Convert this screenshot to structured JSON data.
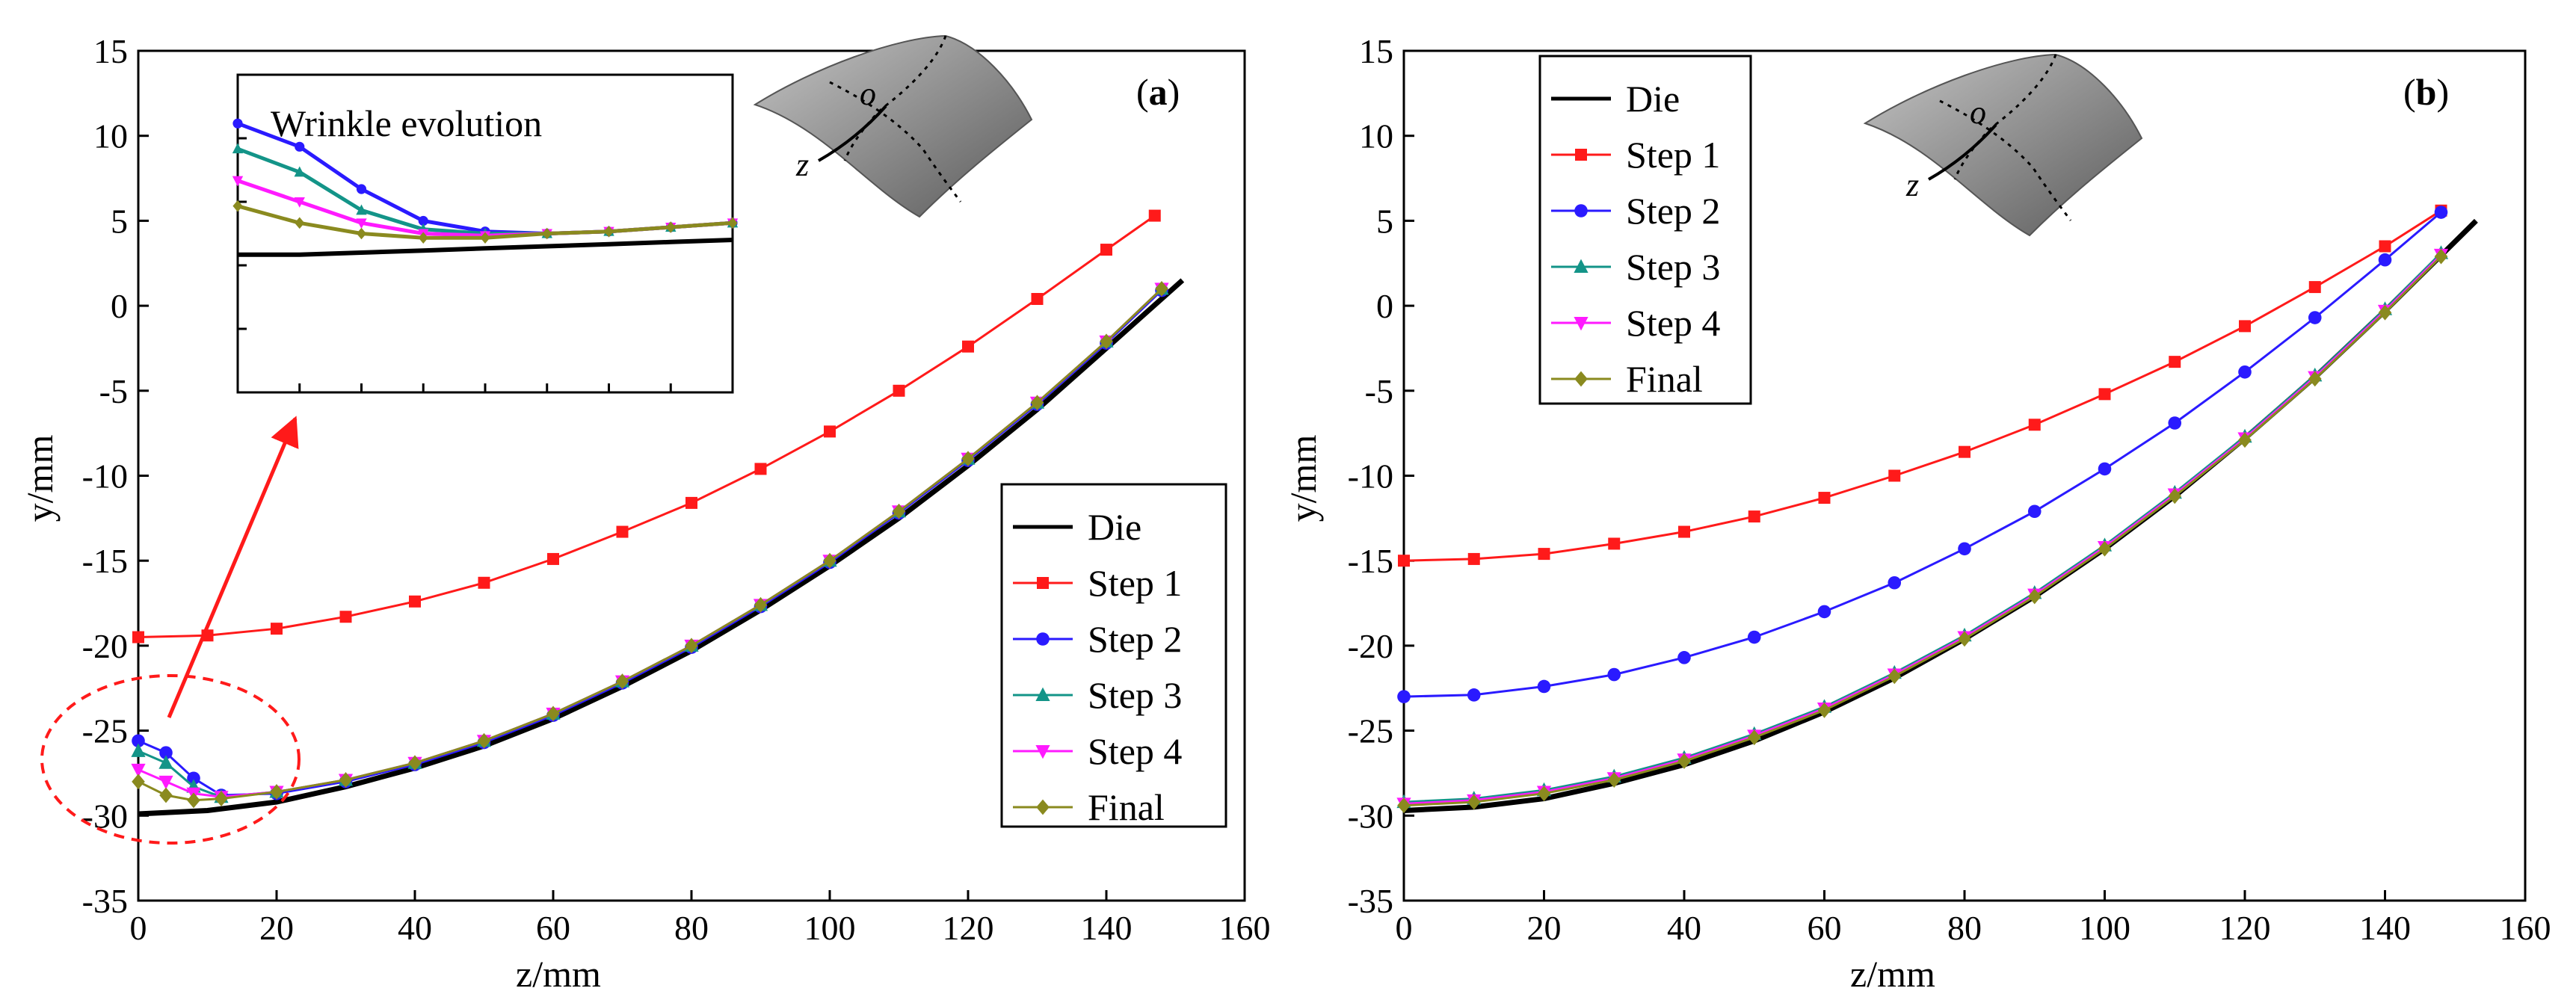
{
  "colors": {
    "die": "#000000",
    "step1": "#ff1a1a",
    "step2": "#2a1aff",
    "step3": "#139488",
    "step4": "#ff1aff",
    "final": "#8a8a1f",
    "annotation": "#ff1a1a"
  },
  "chart_data": [
    {
      "type": "line",
      "panel_label_prefix": "(",
      "panel_label_letter": "a",
      "panel_label_suffix": ")",
      "xlabel": "z/mm",
      "ylabel": "y/mm",
      "xlim": [
        0,
        160
      ],
      "ylim": [
        -35,
        15
      ],
      "xticks": [
        0,
        20,
        40,
        60,
        80,
        100,
        120,
        140,
        160
      ],
      "yticks": [
        -35,
        -30,
        -25,
        -20,
        -15,
        -10,
        -5,
        0,
        5,
        10,
        15
      ],
      "legend_position": "bottom-right",
      "series": [
        {
          "name": "Die",
          "marker": "none",
          "x": [
            0,
            10,
            20,
            30,
            40,
            50,
            60,
            70,
            80,
            90,
            100,
            110,
            120,
            130,
            140,
            151
          ],
          "y": [
            -29.9,
            -29.7,
            -29.2,
            -28.3,
            -27.2,
            -25.9,
            -24.3,
            -22.4,
            -20.3,
            -17.9,
            -15.3,
            -12.5,
            -9.4,
            -6.1,
            -2.5,
            1.5
          ]
        },
        {
          "name": "Step 1",
          "marker": "square",
          "x": [
            0,
            10,
            20,
            30,
            40,
            50,
            60,
            70,
            80,
            90,
            100,
            110,
            120,
            130,
            140,
            147
          ],
          "y": [
            -19.5,
            -19.4,
            -19.0,
            -18.3,
            -17.4,
            -16.3,
            -14.9,
            -13.3,
            -11.6,
            -9.6,
            -7.4,
            -5.0,
            -2.4,
            0.4,
            3.3,
            5.3
          ]
        },
        {
          "name": "Step 2",
          "marker": "circle",
          "x": [
            0,
            4,
            8,
            12,
            20,
            30,
            40,
            50,
            60,
            70,
            80,
            90,
            100,
            110,
            120,
            130,
            140,
            148
          ],
          "y": [
            -25.6,
            -26.3,
            -27.8,
            -28.8,
            -28.7,
            -28.0,
            -27.0,
            -25.7,
            -24.1,
            -22.2,
            -20.1,
            -17.7,
            -15.1,
            -12.2,
            -9.1,
            -5.8,
            -2.2,
            0.9
          ]
        },
        {
          "name": "Step 3",
          "marker": "triangle",
          "x": [
            0,
            4,
            8,
            12,
            20,
            30,
            40,
            50,
            60,
            70,
            80,
            90,
            100,
            110,
            120,
            130,
            140,
            148
          ],
          "y": [
            -26.2,
            -26.9,
            -28.3,
            -28.9,
            -28.6,
            -27.9,
            -26.9,
            -25.6,
            -24.0,
            -22.1,
            -20.0,
            -17.6,
            -15.0,
            -12.1,
            -9.0,
            -5.7,
            -2.1,
            1.0
          ]
        },
        {
          "name": "Step 4",
          "marker": "triangle-down",
          "x": [
            0,
            4,
            8,
            12,
            20,
            30,
            40,
            50,
            60,
            70,
            80,
            90,
            100,
            110,
            120,
            130,
            140,
            148
          ],
          "y": [
            -27.3,
            -28.0,
            -28.7,
            -28.9,
            -28.6,
            -27.9,
            -26.9,
            -25.6,
            -24.0,
            -22.1,
            -20.0,
            -17.6,
            -15.0,
            -12.1,
            -9.0,
            -5.7,
            -2.1,
            1.0
          ]
        },
        {
          "name": "Final",
          "marker": "diamond",
          "x": [
            0,
            4,
            8,
            12,
            20,
            30,
            40,
            50,
            60,
            70,
            80,
            90,
            100,
            110,
            120,
            130,
            140,
            148
          ],
          "y": [
            -28.0,
            -28.8,
            -29.1,
            -29.0,
            -28.6,
            -27.9,
            -26.9,
            -25.6,
            -24.0,
            -22.1,
            -20.0,
            -17.6,
            -15.0,
            -12.1,
            -9.0,
            -5.7,
            -2.1,
            1.0
          ]
        }
      ],
      "inset": {
        "title": "Wrinkle evolution",
        "curves": [
          {
            "series": "Die",
            "y": [
              0.5,
              0.5,
              0.6,
              0.7,
              0.8,
              0.9,
              1.0,
              1.1,
              1.2
            ]
          },
          {
            "series": "Step 2",
            "y": [
              6.7,
              5.6,
              3.6,
              2.1,
              1.6,
              1.5,
              1.6,
              1.8,
              2.0
            ]
          },
          {
            "series": "Step 3",
            "y": [
              5.5,
              4.4,
              2.6,
              1.7,
              1.5,
              1.5,
              1.6,
              1.8,
              2.0
            ]
          },
          {
            "series": "Step 4",
            "y": [
              4.0,
              3.0,
              2.0,
              1.5,
              1.4,
              1.5,
              1.6,
              1.8,
              2.0
            ]
          },
          {
            "series": "Final",
            "y": [
              2.8,
              2.0,
              1.5,
              1.3,
              1.3,
              1.5,
              1.6,
              1.8,
              2.0
            ]
          }
        ]
      },
      "diagram_labels": {
        "origin": "o",
        "axis": "z"
      }
    },
    {
      "type": "line",
      "panel_label_prefix": "(",
      "panel_label_letter": "b",
      "panel_label_suffix": ")",
      "xlabel": "z/mm",
      "ylabel": "y/mm",
      "xlim": [
        0,
        160
      ],
      "ylim": [
        -35,
        15
      ],
      "xticks": [
        0,
        20,
        40,
        60,
        80,
        100,
        120,
        140,
        160
      ],
      "yticks": [
        -35,
        -30,
        -25,
        -20,
        -15,
        -10,
        -5,
        0,
        5,
        10,
        15
      ],
      "legend_position": "top-left",
      "series": [
        {
          "name": "Die",
          "marker": "none",
          "x": [
            0,
            10,
            20,
            30,
            40,
            50,
            60,
            70,
            80,
            90,
            100,
            110,
            120,
            130,
            140,
            153
          ],
          "y": [
            -29.7,
            -29.5,
            -29.0,
            -28.1,
            -27.0,
            -25.6,
            -23.9,
            -21.9,
            -19.6,
            -17.1,
            -14.3,
            -11.2,
            -7.8,
            -4.2,
            -0.3,
            5.0
          ]
        },
        {
          "name": "Step 1",
          "marker": "square",
          "x": [
            0,
            10,
            20,
            30,
            40,
            50,
            60,
            70,
            80,
            90,
            100,
            110,
            120,
            130,
            140,
            148
          ],
          "y": [
            -15.0,
            -14.9,
            -14.6,
            -14.0,
            -13.3,
            -12.4,
            -11.3,
            -10.0,
            -8.6,
            -7.0,
            -5.2,
            -3.3,
            -1.2,
            1.1,
            3.5,
            5.6
          ]
        },
        {
          "name": "Step 2",
          "marker": "circle",
          "x": [
            0,
            10,
            20,
            30,
            40,
            50,
            60,
            70,
            80,
            90,
            100,
            110,
            120,
            130,
            140,
            148
          ],
          "y": [
            -23.0,
            -22.9,
            -22.4,
            -21.7,
            -20.7,
            -19.5,
            -18.0,
            -16.3,
            -14.3,
            -12.1,
            -9.6,
            -6.9,
            -3.9,
            -0.7,
            2.7,
            5.5
          ]
        },
        {
          "name": "Step 3",
          "marker": "triangle",
          "x": [
            0,
            10,
            20,
            30,
            40,
            50,
            60,
            70,
            80,
            90,
            100,
            110,
            120,
            130,
            140,
            148
          ],
          "y": [
            -29.2,
            -29.0,
            -28.5,
            -27.7,
            -26.6,
            -25.2,
            -23.6,
            -21.6,
            -19.4,
            -16.9,
            -14.1,
            -11.0,
            -7.7,
            -4.1,
            -0.2,
            3.1
          ]
        },
        {
          "name": "Step 4",
          "marker": "triangle-down",
          "x": [
            0,
            10,
            20,
            30,
            40,
            50,
            60,
            70,
            80,
            90,
            100,
            110,
            120,
            130,
            140,
            148
          ],
          "y": [
            -29.3,
            -29.1,
            -28.6,
            -27.8,
            -26.7,
            -25.3,
            -23.7,
            -21.7,
            -19.5,
            -17.0,
            -14.2,
            -11.1,
            -7.8,
            -4.2,
            -0.3,
            3.0
          ]
        },
        {
          "name": "Final",
          "marker": "diamond",
          "x": [
            0,
            10,
            20,
            30,
            40,
            50,
            60,
            70,
            80,
            90,
            100,
            110,
            120,
            130,
            140,
            148
          ],
          "y": [
            -29.4,
            -29.2,
            -28.7,
            -27.9,
            -26.8,
            -25.4,
            -23.8,
            -21.8,
            -19.6,
            -17.1,
            -14.3,
            -11.2,
            -7.9,
            -4.3,
            -0.4,
            2.9
          ]
        }
      ],
      "diagram_labels": {
        "origin": "o",
        "axis": "z"
      }
    }
  ]
}
